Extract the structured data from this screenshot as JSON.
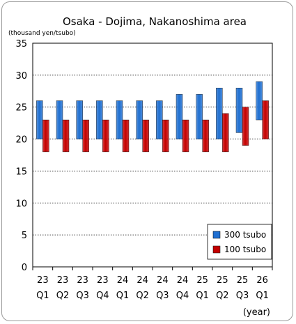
{
  "chart_data": {
    "type": "bar",
    "subtype": "floating-range",
    "title": "Osaka - Dojima, Nakanoshima area",
    "ylabel": "(thousand yen/tsubo)",
    "xlabel": "(year)",
    "ylim": [
      0,
      35
    ],
    "yticks": [
      0,
      5,
      10,
      15,
      20,
      25,
      30,
      35
    ],
    "grid": "horizontal-dotted",
    "legend_position": "bottom-right",
    "categories": [
      {
        "year": "23",
        "quarter": "Q1"
      },
      {
        "year": "23",
        "quarter": "Q2"
      },
      {
        "year": "23",
        "quarter": "Q3"
      },
      {
        "year": "23",
        "quarter": "Q4"
      },
      {
        "year": "24",
        "quarter": "Q1"
      },
      {
        "year": "24",
        "quarter": "Q2"
      },
      {
        "year": "24",
        "quarter": "Q3"
      },
      {
        "year": "24",
        "quarter": "Q4"
      },
      {
        "year": "25",
        "quarter": "Q1"
      },
      {
        "year": "25",
        "quarter": "Q2"
      },
      {
        "year": "25",
        "quarter": "Q3"
      },
      {
        "year": "26",
        "quarter": "Q1"
      }
    ],
    "series": [
      {
        "name": "300 tsubo",
        "color": "#1f6fd1",
        "low": [
          20,
          20,
          20,
          20,
          20,
          20,
          20,
          20,
          20,
          20,
          21,
          23
        ],
        "high": [
          26,
          26,
          26,
          26,
          26,
          26,
          26,
          27,
          27,
          28,
          28,
          29
        ]
      },
      {
        "name": "100 tsubo",
        "color": "#c40000",
        "low": [
          18,
          18,
          18,
          18,
          18,
          18,
          18,
          18,
          18,
          18,
          19,
          20
        ],
        "high": [
          23,
          23,
          23,
          23,
          23,
          23,
          23,
          23,
          23,
          24,
          25,
          26
        ]
      }
    ]
  }
}
